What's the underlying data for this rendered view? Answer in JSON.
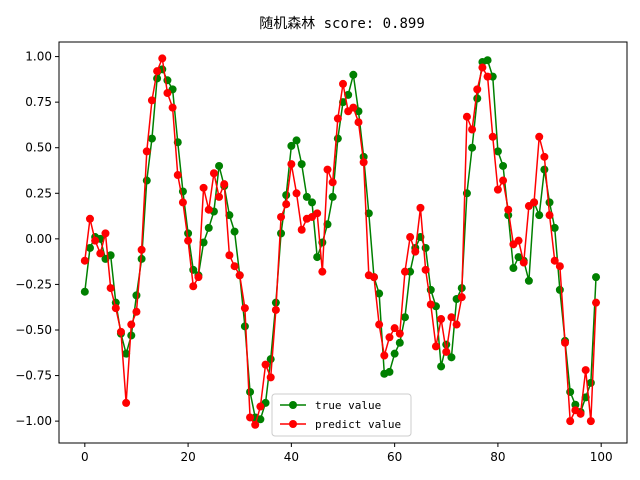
{
  "chart_data": {
    "type": "line",
    "title": "随机森林   score: 0.899",
    "xlabel": "",
    "ylabel": "",
    "xlim": [
      -5,
      105
    ],
    "ylim": [
      -1.12,
      1.08
    ],
    "xticks": [
      0,
      20,
      40,
      60,
      80,
      100
    ],
    "yticks": [
      -1.0,
      -0.75,
      -0.5,
      -0.25,
      0.0,
      0.25,
      0.5,
      0.75,
      1.0
    ],
    "ytick_labels": [
      "−1.00",
      "−0.75",
      "−0.50",
      "−0.25",
      "0.00",
      "0.25",
      "0.50",
      "0.75",
      "1.00"
    ],
    "grid": false,
    "legend_position": "lower-center",
    "series": [
      {
        "name": "true value",
        "color": "#008000",
        "x": [
          0,
          1,
          2,
          3,
          4,
          5,
          6,
          7,
          8,
          9,
          10,
          11,
          12,
          13,
          14,
          15,
          16,
          17,
          18,
          19,
          20,
          21,
          22,
          23,
          24,
          25,
          26,
          27,
          28,
          29,
          30,
          31,
          32,
          33,
          34,
          35,
          36,
          37,
          38,
          39,
          40,
          41,
          42,
          43,
          44,
          45,
          46,
          47,
          48,
          49,
          50,
          51,
          52,
          53,
          54,
          55,
          56,
          57,
          58,
          59,
          60,
          61,
          62,
          63,
          64,
          65,
          66,
          67,
          68,
          69,
          70,
          71,
          72,
          73,
          74,
          75,
          76,
          77,
          78,
          79,
          80,
          81,
          82,
          83,
          84,
          85,
          86,
          87,
          88,
          89,
          90,
          91,
          92,
          93,
          94,
          95,
          96,
          97,
          98,
          99,
          100
        ],
        "values": [
          -0.29,
          -0.05,
          0.01,
          0.0,
          -0.11,
          -0.09,
          -0.35,
          -0.52,
          -0.63,
          -0.53,
          -0.31,
          -0.11,
          0.32,
          0.55,
          0.88,
          0.93,
          0.87,
          0.82,
          0.53,
          0.26,
          0.03,
          -0.17,
          -0.2,
          -0.02,
          0.06,
          0.15,
          0.4,
          0.29,
          0.13,
          0.04,
          -0.2,
          -0.48,
          -0.84,
          -0.98,
          -0.99,
          -0.9,
          -0.66,
          -0.35,
          0.03,
          0.24,
          0.51,
          0.54,
          0.41,
          0.23,
          0.2,
          -0.1,
          -0.02,
          0.08,
          0.23,
          0.55,
          0.75,
          0.79,
          0.9,
          0.7,
          0.45,
          0.14,
          -0.21,
          -0.3,
          -0.74,
          -0.73,
          -0.63,
          -0.57,
          -0.43,
          -0.18,
          -0.05,
          0.01,
          -0.05,
          -0.28,
          -0.37,
          -0.7,
          -0.58,
          -0.65,
          -0.33,
          -0.27,
          0.25,
          0.5,
          0.77,
          0.97,
          0.98,
          0.89,
          0.48,
          0.4,
          0.13,
          -0.16,
          -0.1,
          -0.12,
          -0.23,
          0.2,
          0.13,
          0.38,
          0.2,
          0.06,
          -0.28,
          -0.56,
          -0.84,
          -0.91,
          -0.95,
          -0.87,
          -0.79,
          -0.21,
          null
        ]
      },
      {
        "name": "predict value",
        "color": "#ff0000",
        "x": [
          0,
          1,
          2,
          3,
          4,
          5,
          6,
          7,
          8,
          9,
          10,
          11,
          12,
          13,
          14,
          15,
          16,
          17,
          18,
          19,
          20,
          21,
          22,
          23,
          24,
          25,
          26,
          27,
          28,
          29,
          30,
          31,
          32,
          33,
          34,
          35,
          36,
          37,
          38,
          39,
          40,
          41,
          42,
          43,
          44,
          45,
          46,
          47,
          48,
          49,
          50,
          51,
          52,
          53,
          54,
          55,
          56,
          57,
          58,
          59,
          60,
          61,
          62,
          63,
          64,
          65,
          66,
          67,
          68,
          69,
          70,
          71,
          72,
          73,
          74,
          75,
          76,
          77,
          78,
          79,
          80,
          81,
          82,
          83,
          84,
          85,
          86,
          87,
          88,
          89,
          90,
          91,
          92,
          93,
          94,
          95,
          96,
          97,
          98,
          99
        ],
        "values": [
          -0.12,
          0.11,
          -0.01,
          -0.08,
          0.03,
          -0.27,
          -0.38,
          -0.51,
          -0.9,
          -0.47,
          -0.4,
          -0.06,
          0.48,
          0.76,
          0.92,
          0.99,
          0.8,
          0.72,
          0.35,
          0.2,
          -0.01,
          -0.26,
          -0.21,
          0.28,
          0.16,
          0.36,
          0.23,
          0.3,
          -0.09,
          -0.15,
          -0.2,
          -0.38,
          -0.98,
          -1.02,
          -0.92,
          -0.69,
          -0.76,
          -0.39,
          0.12,
          0.19,
          0.41,
          0.25,
          0.05,
          0.11,
          0.12,
          0.14,
          -0.18,
          0.38,
          0.31,
          0.66,
          0.85,
          0.7,
          0.72,
          0.64,
          0.42,
          -0.2,
          -0.21,
          -0.47,
          -0.64,
          -0.54,
          -0.49,
          -0.52,
          -0.18,
          0.01,
          -0.07,
          0.17,
          -0.17,
          -0.36,
          -0.59,
          -0.44,
          -0.62,
          -0.43,
          -0.47,
          -0.32,
          0.67,
          0.6,
          0.82,
          0.94,
          0.89,
          0.56,
          0.27,
          0.32,
          0.16,
          -0.03,
          -0.01,
          -0.13,
          0.18,
          0.2,
          0.56,
          0.45,
          0.13,
          -0.12,
          -0.15,
          -0.57,
          -1.0,
          -0.94,
          -0.96,
          -0.72,
          -1.0,
          -0.35
        ]
      }
    ]
  }
}
